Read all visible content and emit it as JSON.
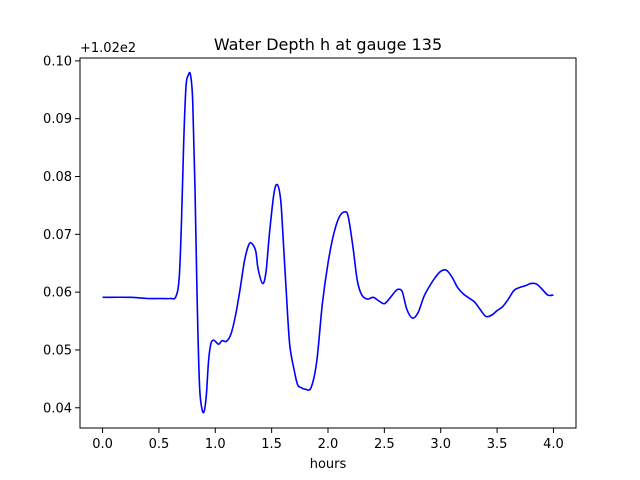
{
  "chart_data": {
    "type": "line",
    "title": "Water Depth h at gauge 135",
    "xlabel": "hours",
    "ylabel": "",
    "y_offset_label": "+1.02e2",
    "xlim": [
      -0.2,
      4.2
    ],
    "ylim": [
      0.0365,
      0.1005
    ],
    "xticks": [
      0.0,
      0.5,
      1.0,
      1.5,
      2.0,
      2.5,
      3.0,
      3.5,
      4.0
    ],
    "xtick_labels": [
      "0.0",
      "0.5",
      "1.0",
      "1.5",
      "2.0",
      "2.5",
      "3.0",
      "3.5",
      "4.0"
    ],
    "yticks": [
      0.04,
      0.05,
      0.06,
      0.07,
      0.08,
      0.09,
      0.1
    ],
    "ytick_labels": [
      "0.04",
      "0.05",
      "0.06",
      "0.07",
      "0.08",
      "0.09",
      "0.10"
    ],
    "grid": false,
    "series": [
      {
        "color": "#0000ff",
        "x": [
          0.0,
          0.25,
          0.4,
          0.5,
          0.6,
          0.65,
          0.68,
          0.7,
          0.72,
          0.74,
          0.76,
          0.78,
          0.8,
          0.82,
          0.84,
          0.86,
          0.88,
          0.9,
          0.92,
          0.94,
          0.96,
          0.98,
          1.0,
          1.03,
          1.06,
          1.1,
          1.14,
          1.18,
          1.22,
          1.26,
          1.3,
          1.33,
          1.36,
          1.38,
          1.42,
          1.45,
          1.48,
          1.52,
          1.55,
          1.58,
          1.6,
          1.63,
          1.66,
          1.7,
          1.73,
          1.76,
          1.8,
          1.85,
          1.9,
          1.95,
          2.0,
          2.05,
          2.1,
          2.15,
          2.18,
          2.22,
          2.26,
          2.3,
          2.35,
          2.4,
          2.45,
          2.5,
          2.55,
          2.6,
          2.63,
          2.66,
          2.7,
          2.75,
          2.8,
          2.85,
          2.9,
          2.95,
          3.0,
          3.05,
          3.1,
          3.15,
          3.2,
          3.25,
          3.3,
          3.35,
          3.4,
          3.45,
          3.5,
          3.55,
          3.6,
          3.65,
          3.7,
          3.75,
          3.8,
          3.85,
          3.9,
          3.95,
          4.0
        ],
        "y": [
          0.0591,
          0.0591,
          0.0589,
          0.0589,
          0.0589,
          0.0592,
          0.0625,
          0.072,
          0.086,
          0.0955,
          0.0975,
          0.0976,
          0.093,
          0.078,
          0.058,
          0.044,
          0.04,
          0.0393,
          0.042,
          0.048,
          0.051,
          0.0517,
          0.0515,
          0.051,
          0.0516,
          0.0515,
          0.0528,
          0.056,
          0.0605,
          0.0655,
          0.0683,
          0.0683,
          0.067,
          0.064,
          0.0615,
          0.0635,
          0.07,
          0.077,
          0.0786,
          0.076,
          0.07,
          0.06,
          0.051,
          0.0465,
          0.044,
          0.0435,
          0.0432,
          0.0435,
          0.048,
          0.058,
          0.065,
          0.07,
          0.073,
          0.0739,
          0.073,
          0.068,
          0.062,
          0.0595,
          0.0588,
          0.0591,
          0.0585,
          0.058,
          0.059,
          0.0602,
          0.0605,
          0.06,
          0.057,
          0.0555,
          0.0565,
          0.0592,
          0.061,
          0.0625,
          0.0636,
          0.0638,
          0.0626,
          0.0608,
          0.0597,
          0.059,
          0.0583,
          0.057,
          0.0558,
          0.056,
          0.0568,
          0.0575,
          0.0588,
          0.0603,
          0.0608,
          0.0611,
          0.0615,
          0.0614,
          0.0605,
          0.0595,
          0.0595
        ]
      }
    ]
  }
}
